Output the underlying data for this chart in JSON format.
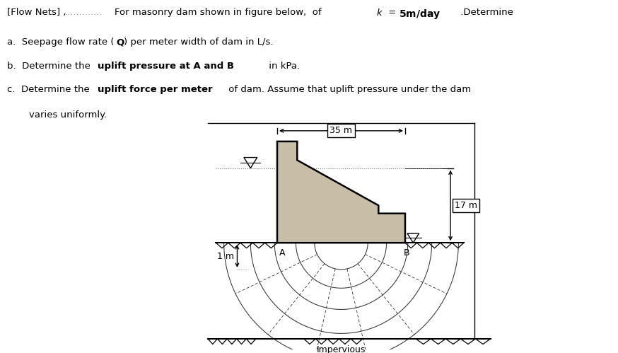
{
  "bg_color": "#ffffff",
  "dam_fill": "#c8bea8",
  "dam_edge": "#000000",
  "label_35m": "35 m",
  "label_17m": "17 m",
  "label_1m": "1 m",
  "label_A": "A",
  "label_B": "B",
  "label_impervious": "Impervious",
  "fig_w": 8.74,
  "fig_h": 4.99,
  "dpi": 100
}
